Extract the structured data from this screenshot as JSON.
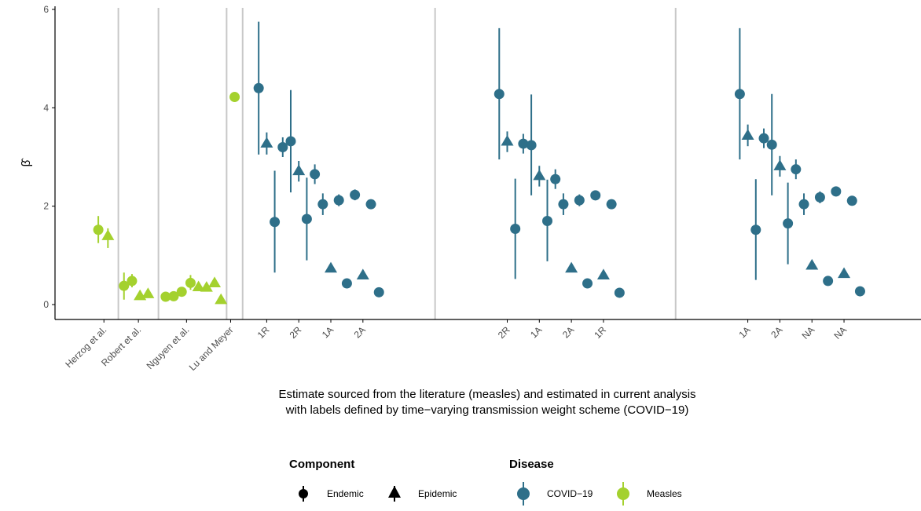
{
  "colors": {
    "covid": "#2e6f89",
    "measles": "#a4d12e",
    "separator": "#c8c8c8",
    "axis": "#000000"
  },
  "chart_data": {
    "type": "scatter",
    "xlabel_lines": [
      "Estimate sourced from the literature (measles) and estimated in current analysis",
      "with labels defined by time−varying transmission weight scheme (COVID−19)"
    ],
    "ylabel": "β̂",
    "ylim": [
      0,
      6
    ],
    "yticks": [
      0,
      2,
      4,
      6
    ],
    "x_tick_labels": [
      {
        "label": "Herzog et al.",
        "x": 6.35
      },
      {
        "label": "Robert et al.",
        "x": 8.5
      },
      {
        "label": "Nguyen et al.",
        "x": 11.5
      },
      {
        "label": "Lu and Meyer",
        "x": 14.25
      },
      {
        "label": "1R",
        "x": 16.5
      },
      {
        "label": "2R",
        "x": 18.5
      },
      {
        "label": "1A",
        "x": 20.5
      },
      {
        "label": "2A",
        "x": 22.5
      },
      {
        "label": "2R",
        "x": 31.5
      },
      {
        "label": "1A",
        "x": 33.5
      },
      {
        "label": "2A",
        "x": 35.5
      },
      {
        "label": "1R",
        "x": 37.5
      },
      {
        "label": "1A",
        "x": 46.5
      },
      {
        "label": "2A",
        "x": 48.5
      },
      {
        "label": "NA",
        "x": 50.5
      },
      {
        "label": "NA",
        "x": 52.5
      }
    ],
    "separators": [
      7.25,
      9.75,
      14.0,
      15.0,
      27.0,
      42.0
    ],
    "points": [
      {
        "x": 6.0,
        "y": 1.52,
        "lo": 1.25,
        "hi": 1.8,
        "component": "Endemic",
        "disease": "Measles"
      },
      {
        "x": 6.6,
        "y": 1.4,
        "lo": 1.15,
        "hi": 1.55,
        "component": "Epidemic",
        "disease": "Measles"
      },
      {
        "x": 7.6,
        "y": 0.38,
        "lo": 0.1,
        "hi": 0.65,
        "component": "Endemic",
        "disease": "Measles"
      },
      {
        "x": 8.1,
        "y": 0.48,
        "lo": 0.35,
        "hi": 0.62,
        "component": "Endemic",
        "disease": "Measles"
      },
      {
        "x": 8.6,
        "y": 0.18,
        "component": "Epidemic",
        "disease": "Measles"
      },
      {
        "x": 9.1,
        "y": 0.22,
        "component": "Epidemic",
        "disease": "Measles"
      },
      {
        "x": 10.2,
        "y": 0.16,
        "component": "Endemic",
        "disease": "Measles"
      },
      {
        "x": 10.7,
        "y": 0.17,
        "component": "Endemic",
        "disease": "Measles"
      },
      {
        "x": 11.2,
        "y": 0.26,
        "component": "Endemic",
        "disease": "Measles"
      },
      {
        "x": 11.75,
        "y": 0.44,
        "lo": 0.3,
        "hi": 0.6,
        "component": "Endemic",
        "disease": "Measles"
      },
      {
        "x": 12.25,
        "y": 0.36,
        "component": "Epidemic",
        "disease": "Measles"
      },
      {
        "x": 12.75,
        "y": 0.35,
        "component": "Epidemic",
        "disease": "Measles"
      },
      {
        "x": 13.25,
        "y": 0.44,
        "component": "Epidemic",
        "disease": "Measles"
      },
      {
        "x": 13.65,
        "y": 0.1,
        "component": "Epidemic",
        "disease": "Measles"
      },
      {
        "x": 14.5,
        "y": 4.22,
        "component": "Endemic",
        "disease": "Measles"
      },
      {
        "x": 16.0,
        "y": 4.4,
        "lo": 3.05,
        "hi": 5.75,
        "component": "Endemic",
        "disease": "COVID-19"
      },
      {
        "x": 16.5,
        "y": 3.28,
        "lo": 3.05,
        "hi": 3.5,
        "component": "Epidemic",
        "disease": "COVID-19"
      },
      {
        "x": 17.0,
        "y": 1.68,
        "lo": 0.65,
        "hi": 2.72,
        "component": "Endemic",
        "disease": "COVID-19"
      },
      {
        "x": 17.5,
        "y": 3.2,
        "lo": 3.0,
        "hi": 3.4,
        "component": "Endemic",
        "disease": "COVID-19"
      },
      {
        "x": 18.0,
        "y": 3.32,
        "lo": 2.28,
        "hi": 4.36,
        "component": "Endemic",
        "disease": "COVID-19"
      },
      {
        "x": 18.5,
        "y": 2.72,
        "lo": 2.5,
        "hi": 2.92,
        "component": "Epidemic",
        "disease": "COVID-19"
      },
      {
        "x": 19.0,
        "y": 1.74,
        "lo": 0.9,
        "hi": 2.58,
        "component": "Endemic",
        "disease": "COVID-19"
      },
      {
        "x": 19.5,
        "y": 2.65,
        "lo": 2.45,
        "hi": 2.85,
        "component": "Endemic",
        "disease": "COVID-19"
      },
      {
        "x": 20.0,
        "y": 2.04,
        "lo": 1.82,
        "hi": 2.26,
        "component": "Endemic",
        "disease": "COVID-19"
      },
      {
        "x": 20.5,
        "y": 0.74,
        "component": "Epidemic",
        "disease": "COVID-19"
      },
      {
        "x": 21.0,
        "y": 2.12,
        "lo": 2.0,
        "hi": 2.24,
        "component": "Endemic",
        "disease": "COVID-19"
      },
      {
        "x": 21.5,
        "y": 0.43,
        "component": "Endemic",
        "disease": "COVID-19"
      },
      {
        "x": 22.0,
        "y": 2.23,
        "lo": 2.12,
        "hi": 2.34,
        "component": "Endemic",
        "disease": "COVID-19"
      },
      {
        "x": 22.5,
        "y": 0.6,
        "component": "Epidemic",
        "disease": "COVID-19"
      },
      {
        "x": 23.0,
        "y": 2.04,
        "component": "Endemic",
        "disease": "COVID-19"
      },
      {
        "x": 23.5,
        "y": 0.25,
        "component": "Endemic",
        "disease": "COVID-19"
      },
      {
        "x": 31.0,
        "y": 4.28,
        "lo": 2.95,
        "hi": 5.62,
        "component": "Endemic",
        "disease": "COVID-19"
      },
      {
        "x": 31.5,
        "y": 3.32,
        "lo": 3.1,
        "hi": 3.52,
        "component": "Epidemic",
        "disease": "COVID-19"
      },
      {
        "x": 32.0,
        "y": 1.54,
        "lo": 0.52,
        "hi": 2.56,
        "component": "Endemic",
        "disease": "COVID-19"
      },
      {
        "x": 32.5,
        "y": 3.27,
        "lo": 3.07,
        "hi": 3.47,
        "component": "Endemic",
        "disease": "COVID-19"
      },
      {
        "x": 33.0,
        "y": 3.24,
        "lo": 2.22,
        "hi": 4.27,
        "component": "Endemic",
        "disease": "COVID-19"
      },
      {
        "x": 33.5,
        "y": 2.62,
        "lo": 2.4,
        "hi": 2.82,
        "component": "Epidemic",
        "disease": "COVID-19"
      },
      {
        "x": 34.0,
        "y": 1.7,
        "lo": 0.88,
        "hi": 2.54,
        "component": "Endemic",
        "disease": "COVID-19"
      },
      {
        "x": 34.5,
        "y": 2.55,
        "lo": 2.35,
        "hi": 2.75,
        "component": "Endemic",
        "disease": "COVID-19"
      },
      {
        "x": 35.0,
        "y": 2.04,
        "lo": 1.82,
        "hi": 2.26,
        "component": "Endemic",
        "disease": "COVID-19"
      },
      {
        "x": 35.5,
        "y": 0.74,
        "component": "Epidemic",
        "disease": "COVID-19"
      },
      {
        "x": 36.0,
        "y": 2.12,
        "lo": 2.0,
        "hi": 2.24,
        "component": "Endemic",
        "disease": "COVID-19"
      },
      {
        "x": 36.5,
        "y": 0.43,
        "component": "Endemic",
        "disease": "COVID-19"
      },
      {
        "x": 37.0,
        "y": 2.22,
        "lo": 2.12,
        "hi": 2.32,
        "component": "Endemic",
        "disease": "COVID-19"
      },
      {
        "x": 37.5,
        "y": 0.6,
        "component": "Epidemic",
        "disease": "COVID-19"
      },
      {
        "x": 38.0,
        "y": 2.04,
        "component": "Endemic",
        "disease": "COVID-19"
      },
      {
        "x": 38.5,
        "y": 0.24,
        "component": "Endemic",
        "disease": "COVID-19"
      },
      {
        "x": 46.0,
        "y": 4.28,
        "lo": 2.95,
        "hi": 5.62,
        "component": "Endemic",
        "disease": "COVID-19"
      },
      {
        "x": 46.5,
        "y": 3.44,
        "lo": 3.22,
        "hi": 3.66,
        "component": "Epidemic",
        "disease": "COVID-19"
      },
      {
        "x": 47.0,
        "y": 1.52,
        "lo": 0.5,
        "hi": 2.55,
        "component": "Endemic",
        "disease": "COVID-19"
      },
      {
        "x": 47.5,
        "y": 3.38,
        "lo": 3.18,
        "hi": 3.58,
        "component": "Endemic",
        "disease": "COVID-19"
      },
      {
        "x": 48.0,
        "y": 3.25,
        "lo": 2.22,
        "hi": 4.28,
        "component": "Endemic",
        "disease": "COVID-19"
      },
      {
        "x": 48.5,
        "y": 2.82,
        "lo": 2.6,
        "hi": 3.02,
        "component": "Epidemic",
        "disease": "COVID-19"
      },
      {
        "x": 49.0,
        "y": 1.65,
        "lo": 0.82,
        "hi": 2.48,
        "component": "Endemic",
        "disease": "COVID-19"
      },
      {
        "x": 49.5,
        "y": 2.75,
        "lo": 2.55,
        "hi": 2.95,
        "component": "Endemic",
        "disease": "COVID-19"
      },
      {
        "x": 50.0,
        "y": 2.04,
        "lo": 1.82,
        "hi": 2.26,
        "component": "Endemic",
        "disease": "COVID-19"
      },
      {
        "x": 50.5,
        "y": 0.8,
        "component": "Epidemic",
        "disease": "COVID-19"
      },
      {
        "x": 51.0,
        "y": 2.18,
        "lo": 2.06,
        "hi": 2.3,
        "component": "Endemic",
        "disease": "COVID-19"
      },
      {
        "x": 51.5,
        "y": 0.48,
        "component": "Endemic",
        "disease": "COVID-19"
      },
      {
        "x": 52.0,
        "y": 2.3,
        "lo": 2.2,
        "hi": 2.4,
        "component": "Endemic",
        "disease": "COVID-19"
      },
      {
        "x": 52.5,
        "y": 0.63,
        "component": "Epidemic",
        "disease": "COVID-19"
      },
      {
        "x": 53.0,
        "y": 2.11,
        "component": "Endemic",
        "disease": "COVID-19"
      },
      {
        "x": 53.5,
        "y": 0.27,
        "component": "Endemic",
        "disease": "COVID-19"
      }
    ],
    "legend": {
      "component": {
        "title": "Component",
        "items": [
          "Endemic",
          "Epidemic"
        ]
      },
      "disease": {
        "title": "Disease",
        "items": [
          "COVID−19",
          "Measles"
        ]
      }
    }
  }
}
